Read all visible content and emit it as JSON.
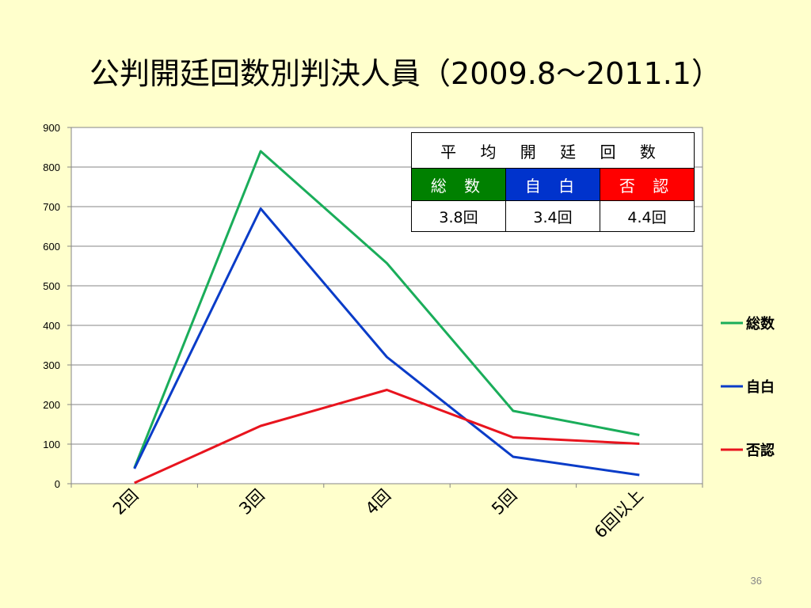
{
  "slide": {
    "title": "公判開廷回数別判決人員（2009.8～2011.1）",
    "page_number": "36"
  },
  "table": {
    "header": "平 均 開 廷 回 数",
    "columns": [
      {
        "label": "総 数",
        "value": "3.8回",
        "color": "#008000"
      },
      {
        "label": "自 白",
        "value": "3.4回",
        "color": "#0033cc"
      },
      {
        "label": "否 認",
        "value": "4.4回",
        "color": "#ff0000"
      }
    ]
  },
  "chart_data": {
    "type": "line",
    "categories": [
      "2回",
      "3回",
      "4回",
      "5回",
      "6回以上"
    ],
    "ylim": [
      0,
      900
    ],
    "yticks": [
      0,
      100,
      200,
      300,
      400,
      500,
      600,
      700,
      800,
      900
    ],
    "grid": true,
    "legend_position": "right",
    "series": [
      {
        "name": "総数",
        "color": "#1aad5a",
        "values": [
          40,
          840,
          557,
          184,
          123
        ]
      },
      {
        "name": "自白",
        "color": "#0a3cc8",
        "values": [
          38,
          695,
          320,
          68,
          22
        ]
      },
      {
        "name": "否認",
        "color": "#e8141e",
        "values": [
          2,
          146,
          237,
          117,
          101
        ]
      }
    ]
  }
}
